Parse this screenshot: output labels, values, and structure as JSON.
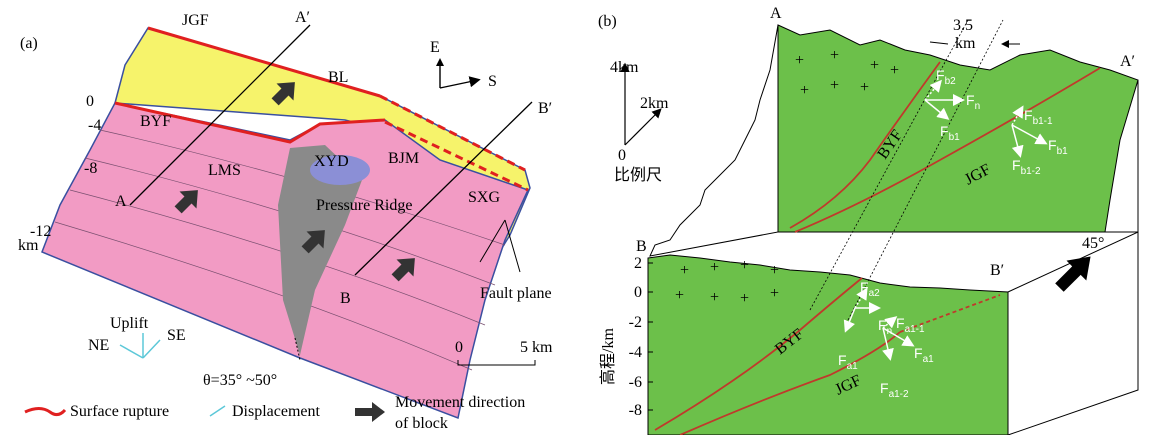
{
  "panel_a": {
    "label": "(a)",
    "faults": {
      "jgf": "JGF",
      "byf": "BYF"
    },
    "section_ends": {
      "a_prime": "A′",
      "a": "A",
      "b_prime": "B′",
      "b": "B"
    },
    "sites": {
      "bl": "BL",
      "lms": "LMS",
      "xyd": "XYD",
      "bjm": "BJM",
      "sxg": "SXG"
    },
    "compass": {
      "east": "E",
      "south": "S"
    },
    "depth_ticks": [
      "0",
      "-4",
      "-8",
      "-12"
    ],
    "depth_unit": "km",
    "pressure_ridge": "Pressure Ridge",
    "fault_plane": "Fault plane",
    "displacement_axes": {
      "up": "Uplift",
      "ne": "NE",
      "se": "SE"
    },
    "dip_angle": "θ=35° ~50°",
    "scale_bar": {
      "start": "0",
      "end": "5 km"
    }
  },
  "legend": {
    "surface_rupture": "Surface rupture",
    "displacement": "Displacement",
    "movement": [
      "Movement direction",
      "of block"
    ]
  },
  "panel_b": {
    "label": "(b)",
    "back_section": {
      "start": "A",
      "end": "A′"
    },
    "front_section": {
      "start": "B",
      "end": "B′"
    },
    "zone_width": {
      "value": "3.5",
      "unit": "km"
    },
    "scale": {
      "top": "4km",
      "mid": "2km",
      "zero": "0",
      "title": "比例尺"
    },
    "view_angle": "45°",
    "elevation_axis": {
      "title": "高程/km",
      "ticks": [
        "2",
        "0",
        "-2",
        "-4",
        "-6",
        "-8"
      ]
    },
    "back_faults": {
      "byf": "BYF",
      "jgf": "JGF"
    },
    "front_faults": {
      "byf": "BYF",
      "jgf": "JGF"
    },
    "back_forces": [
      {
        "symbol": "F",
        "subscript": "b2"
      },
      {
        "symbol": "F",
        "subscript": "n"
      },
      {
        "symbol": "F",
        "subscript": "b1"
      },
      {
        "symbol": "F",
        "subscript": "b1-1"
      },
      {
        "symbol": "F",
        "subscript": "b1"
      },
      {
        "symbol": "F",
        "subscript": "b1-2"
      }
    ],
    "front_forces": [
      {
        "symbol": "F",
        "subscript": "a2"
      },
      {
        "symbol": "F",
        "subscript": "n"
      },
      {
        "symbol": "F",
        "subscript": "a1"
      },
      {
        "symbol": "F",
        "subscript": "a1-1"
      },
      {
        "symbol": "F",
        "subscript": "a1"
      },
      {
        "symbol": "F",
        "subscript": "a1-2"
      }
    ]
  }
}
